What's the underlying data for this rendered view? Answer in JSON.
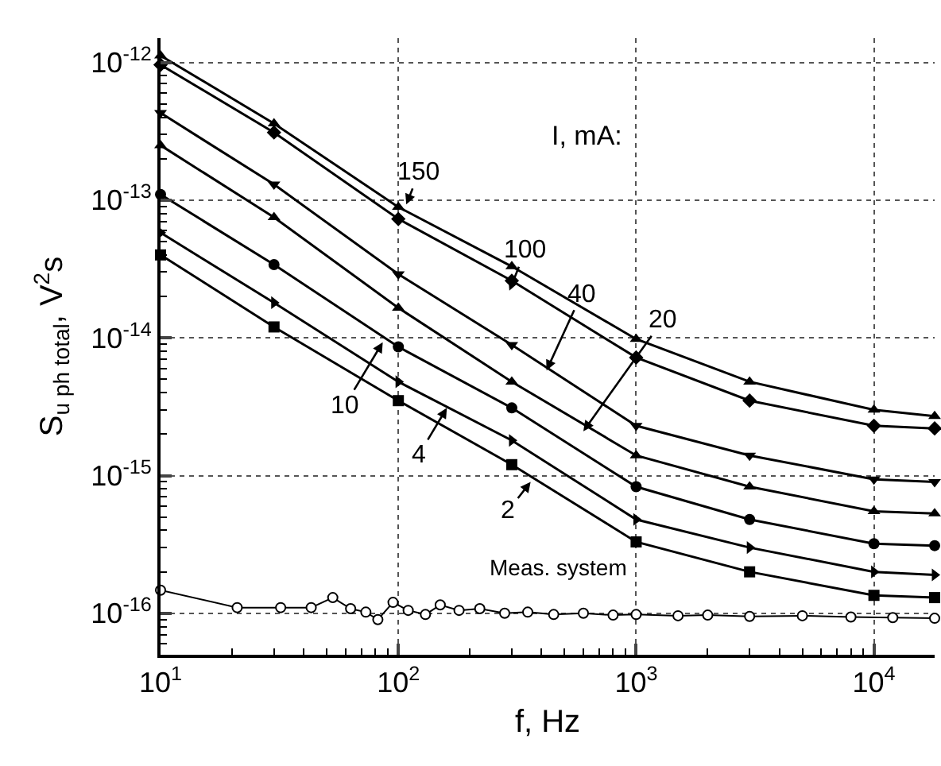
{
  "chart_data": {
    "type": "line",
    "xlabel": "f, Hz",
    "ylabel": "S$_{u ph total}$, V$^{2}$s",
    "log": "xy",
    "grid": true,
    "line_style": "solid",
    "x": [
      10,
      30,
      100,
      300,
      1000,
      3000,
      10000,
      18000
    ],
    "xlim": [
      10,
      18000
    ],
    "ylim": [
      5e-17,
      1.5e-12
    ],
    "xticks": [
      {
        "value": 10,
        "label": "10$^{1}$"
      },
      {
        "value": 100,
        "label": "10$^{2}$"
      },
      {
        "value": 1000,
        "label": "10$^{3}$"
      },
      {
        "value": 10000,
        "label": "10$^{4}$"
      }
    ],
    "yticks": [
      {
        "value": 1e-16,
        "label": "10$^{-16}$"
      },
      {
        "value": 1e-15,
        "label": "10$^{-15}$"
      },
      {
        "value": 1e-14,
        "label": "10$^{-14}$"
      },
      {
        "value": 1e-13,
        "label": "10$^{-13}$"
      },
      {
        "value": 1e-12,
        "label": "10$^{-12}$"
      }
    ],
    "series": [
      {
        "color": "#000000",
        "marker": "triangle",
        "values": [
          1.12e-12,
          3.6e-13,
          8.9e-14,
          3.3e-14,
          9.8e-15,
          4.8e-15,
          3e-15,
          2.7e-15
        ]
      },
      {
        "color": "#000000",
        "marker": "diamond",
        "values": [
          9.6e-13,
          3.1e-13,
          7.3e-14,
          2.6e-14,
          7.2e-15,
          3.5e-15,
          2.3e-15,
          2.2e-15
        ]
      },
      {
        "color": "#000000",
        "marker": "triangle-down",
        "values": [
          4.3e-13,
          1.3e-13,
          2.9e-14,
          8.9e-15,
          2.3e-15,
          1.4e-15,
          9.4e-16,
          9e-16
        ]
      },
      {
        "color": "#000000",
        "marker": "triangle",
        "values": [
          2.5e-13,
          7.5e-14,
          1.65e-14,
          4.8e-15,
          1.4e-15,
          8.3e-16,
          5.5e-16,
          5.3e-16
        ]
      },
      {
        "color": "#000000",
        "marker": "circle",
        "values": [
          1.1e-13,
          3.4e-14,
          8.6e-15,
          3.1e-15,
          8.3e-16,
          4.8e-16,
          3.2e-16,
          3.1e-16
        ]
      },
      {
        "color": "#000000",
        "marker": "triangle-right",
        "values": [
          5.8e-14,
          1.8e-14,
          4.8e-15,
          1.8e-15,
          4.8e-16,
          3e-16,
          2e-16,
          1.9e-16
        ]
      },
      {
        "color": "#000000",
        "marker": "square",
        "values": [
          4e-14,
          1.2e-14,
          3.5e-15,
          1.2e-15,
          3.3e-16,
          2e-16,
          1.35e-16,
          1.3e-16
        ]
      },
      {
        "color": "#000000",
        "marker": "circle-open",
        "x": [
          10,
          21,
          32,
          43,
          53,
          63,
          73,
          82,
          95,
          110,
          130,
          150,
          180,
          220,
          280,
          350,
          450,
          600,
          800,
          1000,
          1500,
          2000,
          3000,
          5000,
          8000,
          12000,
          18000
        ],
        "values": [
          1.47e-16,
          1.1e-16,
          1.1e-16,
          1.1e-16,
          1.3e-16,
          1.08e-16,
          1.02e-16,
          9e-17,
          1.2e-16,
          1.05e-16,
          9.8e-17,
          1.15e-16,
          1.05e-16,
          1.08e-16,
          1e-16,
          1.02e-16,
          9.8e-17,
          1e-16,
          9.7e-17,
          9.8e-17,
          9.6e-17,
          9.7e-17,
          9.5e-17,
          9.6e-17,
          9.4e-17,
          9.3e-17,
          9.2e-17
        ]
      }
    ],
    "annotations": [
      "I, mA:",
      {
        "text": "150",
        "x": 108,
        "y": 9.3e-14
      },
      {
        "text": "100",
        "x": 293,
        "y": 2.2e-14
      },
      {
        "text": "40",
        "x": 420,
        "y": 5.8e-15
      },
      {
        "text": "20",
        "x": 600,
        "y": 2.1e-15
      },
      {
        "text": "10",
        "x": 86,
        "y": 9.3e-15
      },
      {
        "text": "4",
        "x": 160,
        "y": 3.1e-15
      },
      {
        "text": "2",
        "x": 360,
        "y": 9e-16
      },
      "Meas. system"
    ]
  }
}
